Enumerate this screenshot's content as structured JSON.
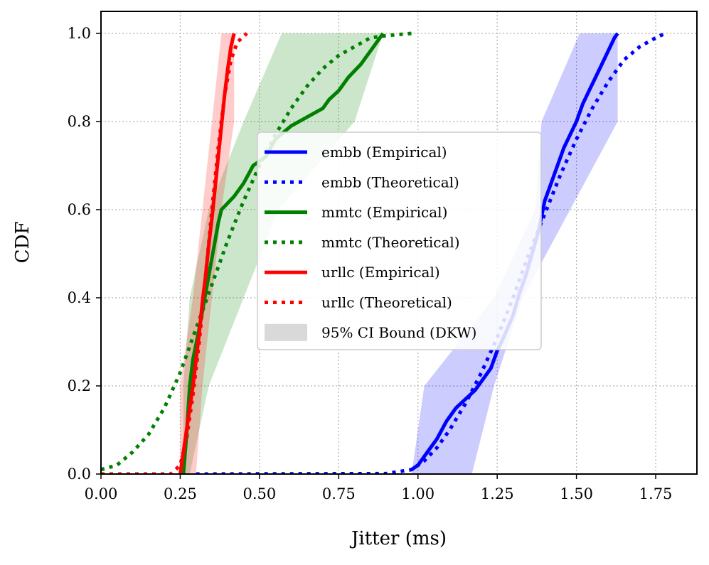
{
  "chart_data": {
    "type": "line",
    "title": "",
    "xlabel": "Jitter (ms)",
    "ylabel": "CDF",
    "xlim": [
      0.0,
      1.88
    ],
    "ylim": [
      0.0,
      1.05
    ],
    "x_ticks": [
      "0.00",
      "0.25",
      "0.50",
      "0.75",
      "1.00",
      "1.25",
      "1.50",
      "1.75"
    ],
    "y_ticks": [
      "0.0",
      "0.2",
      "0.4",
      "0.6",
      "0.8",
      "1.0"
    ],
    "grid": true,
    "legend_position": "center",
    "colors": {
      "embb": "#0000ff",
      "mmtc": "#008000",
      "urllc": "#ff0000"
    },
    "series": [
      {
        "name": "embb (Empirical)",
        "style": "solid",
        "color": "#0000ff",
        "points": [
          [
            0.98,
            0.01
          ],
          [
            1.0,
            0.02
          ],
          [
            1.03,
            0.05
          ],
          [
            1.06,
            0.08
          ],
          [
            1.09,
            0.12
          ],
          [
            1.12,
            0.15
          ],
          [
            1.15,
            0.17
          ],
          [
            1.18,
            0.19
          ],
          [
            1.21,
            0.22
          ],
          [
            1.23,
            0.24
          ],
          [
            1.25,
            0.28
          ],
          [
            1.27,
            0.31
          ],
          [
            1.3,
            0.36
          ],
          [
            1.32,
            0.41
          ],
          [
            1.34,
            0.45
          ],
          [
            1.36,
            0.5
          ],
          [
            1.38,
            0.55
          ],
          [
            1.4,
            0.62
          ],
          [
            1.42,
            0.66
          ],
          [
            1.44,
            0.7
          ],
          [
            1.46,
            0.74
          ],
          [
            1.48,
            0.77
          ],
          [
            1.5,
            0.8
          ],
          [
            1.52,
            0.84
          ],
          [
            1.54,
            0.87
          ],
          [
            1.56,
            0.9
          ],
          [
            1.58,
            0.93
          ],
          [
            1.6,
            0.96
          ],
          [
            1.62,
            0.99
          ],
          [
            1.63,
            1.0
          ]
        ]
      },
      {
        "name": "embb (Theoretical)",
        "style": "dotted",
        "color": "#0000ff",
        "points": [
          [
            0.3,
            0.0
          ],
          [
            0.9,
            0.001
          ],
          [
            0.98,
            0.01
          ],
          [
            1.02,
            0.03
          ],
          [
            1.06,
            0.06
          ],
          [
            1.1,
            0.1
          ],
          [
            1.15,
            0.16
          ],
          [
            1.2,
            0.23
          ],
          [
            1.25,
            0.31
          ],
          [
            1.3,
            0.4
          ],
          [
            1.35,
            0.5
          ],
          [
            1.4,
            0.59
          ],
          [
            1.45,
            0.68
          ],
          [
            1.5,
            0.76
          ],
          [
            1.55,
            0.83
          ],
          [
            1.6,
            0.89
          ],
          [
            1.65,
            0.94
          ],
          [
            1.7,
            0.97
          ],
          [
            1.75,
            0.99
          ],
          [
            1.78,
            1.0
          ]
        ]
      },
      {
        "name": "mmtc (Empirical)",
        "style": "solid",
        "color": "#008000",
        "points": [
          [
            0.26,
            0.0
          ],
          [
            0.27,
            0.09
          ],
          [
            0.28,
            0.2
          ],
          [
            0.29,
            0.26
          ],
          [
            0.31,
            0.33
          ],
          [
            0.33,
            0.41
          ],
          [
            0.35,
            0.49
          ],
          [
            0.36,
            0.53
          ],
          [
            0.37,
            0.57
          ],
          [
            0.38,
            0.6
          ],
          [
            0.42,
            0.63
          ],
          [
            0.45,
            0.66
          ],
          [
            0.48,
            0.7
          ],
          [
            0.52,
            0.72
          ],
          [
            0.55,
            0.76
          ],
          [
            0.6,
            0.79
          ],
          [
            0.65,
            0.81
          ],
          [
            0.7,
            0.83
          ],
          [
            0.72,
            0.85
          ],
          [
            0.75,
            0.87
          ],
          [
            0.78,
            0.9
          ],
          [
            0.82,
            0.93
          ],
          [
            0.85,
            0.96
          ],
          [
            0.87,
            0.98
          ],
          [
            0.89,
            1.0
          ]
        ]
      },
      {
        "name": "mmtc (Theoretical)",
        "style": "dotted",
        "color": "#008000",
        "points": [
          [
            0.0,
            0.01
          ],
          [
            0.05,
            0.02
          ],
          [
            0.1,
            0.05
          ],
          [
            0.15,
            0.09
          ],
          [
            0.2,
            0.15
          ],
          [
            0.25,
            0.23
          ],
          [
            0.3,
            0.33
          ],
          [
            0.35,
            0.43
          ],
          [
            0.4,
            0.53
          ],
          [
            0.45,
            0.62
          ],
          [
            0.5,
            0.7
          ],
          [
            0.55,
            0.77
          ],
          [
            0.6,
            0.83
          ],
          [
            0.65,
            0.88
          ],
          [
            0.7,
            0.92
          ],
          [
            0.75,
            0.95
          ],
          [
            0.8,
            0.97
          ],
          [
            0.85,
            0.99
          ],
          [
            0.9,
            0.995
          ],
          [
            0.98,
            1.0
          ]
        ]
      },
      {
        "name": "urllc (Empirical)",
        "style": "solid",
        "color": "#ff0000",
        "points": [
          [
            0.25,
            0.0
          ],
          [
            0.26,
            0.05
          ],
          [
            0.27,
            0.1
          ],
          [
            0.28,
            0.15
          ],
          [
            0.29,
            0.2
          ],
          [
            0.3,
            0.26
          ],
          [
            0.31,
            0.32
          ],
          [
            0.32,
            0.39
          ],
          [
            0.33,
            0.45
          ],
          [
            0.34,
            0.52
          ],
          [
            0.35,
            0.58
          ],
          [
            0.36,
            0.65
          ],
          [
            0.37,
            0.72
          ],
          [
            0.38,
            0.79
          ],
          [
            0.39,
            0.86
          ],
          [
            0.4,
            0.92
          ],
          [
            0.41,
            0.97
          ],
          [
            0.42,
            1.0
          ]
        ]
      },
      {
        "name": "urllc (Theoretical)",
        "style": "dotted",
        "color": "#ff0000",
        "points": [
          [
            0.0,
            0.0
          ],
          [
            0.22,
            0.0
          ],
          [
            0.25,
            0.02
          ],
          [
            0.27,
            0.08
          ],
          [
            0.29,
            0.18
          ],
          [
            0.31,
            0.3
          ],
          [
            0.33,
            0.45
          ],
          [
            0.35,
            0.6
          ],
          [
            0.37,
            0.74
          ],
          [
            0.39,
            0.86
          ],
          [
            0.41,
            0.94
          ],
          [
            0.43,
            0.98
          ],
          [
            0.46,
            1.0
          ]
        ]
      }
    ],
    "bands": [
      {
        "name": "95% CI Bound (DKW)",
        "group": "embb",
        "color": "#0000ff",
        "y": [
          0.0,
          0.2,
          0.4,
          0.6,
          0.8,
          1.0
        ],
        "x_left": [
          0.98,
          1.02,
          1.24,
          1.37,
          1.39,
          1.51
        ],
        "x_right": [
          1.17,
          1.24,
          1.33,
          1.48,
          1.63,
          1.63
        ]
      },
      {
        "name": "95% CI Bound (DKW)",
        "group": "mmtc",
        "color": "#008000",
        "y": [
          0.0,
          0.2,
          0.4,
          0.6,
          0.8,
          1.0
        ],
        "x_left": [
          0.26,
          0.26,
          0.28,
          0.34,
          0.45,
          0.57
        ],
        "x_right": [
          0.28,
          0.34,
          0.45,
          0.56,
          0.8,
          0.89
        ]
      },
      {
        "name": "95% CI Bound (DKW)",
        "group": "urllc",
        "color": "#ff0000",
        "y": [
          0.0,
          0.2,
          0.4,
          0.6,
          0.8,
          1.0
        ],
        "x_left": [
          0.25,
          0.25,
          0.29,
          0.32,
          0.35,
          0.38
        ],
        "x_right": [
          0.3,
          0.32,
          0.35,
          0.38,
          0.42,
          0.42
        ]
      }
    ],
    "legend": [
      {
        "label": "embb (Empirical)",
        "color": "#0000ff",
        "kind": "solid"
      },
      {
        "label": "embb (Theoretical)",
        "color": "#0000ff",
        "kind": "dotted"
      },
      {
        "label": "mmtc (Empirical)",
        "color": "#008000",
        "kind": "solid"
      },
      {
        "label": "mmtc (Theoretical)",
        "color": "#008000",
        "kind": "dotted"
      },
      {
        "label": "urllc (Empirical)",
        "color": "#ff0000",
        "kind": "solid"
      },
      {
        "label": "urllc (Theoretical)",
        "color": "#ff0000",
        "kind": "dotted"
      },
      {
        "label": "95% CI Bound (DKW)",
        "color": "#bfbfbf",
        "kind": "patch"
      }
    ]
  }
}
